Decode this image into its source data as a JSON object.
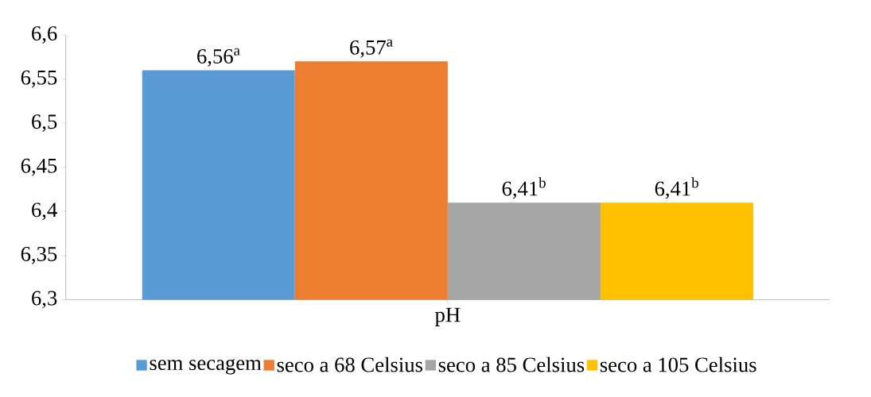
{
  "chart_data": {
    "type": "bar",
    "categories": [
      "pH"
    ],
    "series": [
      {
        "name": "sem secagem",
        "color": "#5b9bd5",
        "values": [
          6.56
        ],
        "value_labels": [
          "6,56$^{a}$"
        ]
      },
      {
        "name": "seco a 68 Celsius",
        "color": "#ed7d31",
        "values": [
          6.57
        ],
        "value_labels": [
          "6,57$^{a}$"
        ]
      },
      {
        "name": "seco a 85 Celsius",
        "color": "#a5a5a5",
        "values": [
          6.41
        ],
        "value_labels": [
          "6,41$^{b}$"
        ]
      },
      {
        "name": "seco a 105 Celsius",
        "color": "#ffc000",
        "values": [
          6.41
        ],
        "value_labels": [
          "6,41$^{b}$"
        ]
      }
    ],
    "ylim": [
      6.3,
      6.6
    ],
    "yticks": [
      {
        "value": 6.3,
        "label": "6,3"
      },
      {
        "value": 6.35,
        "label": "6,35"
      },
      {
        "value": 6.4,
        "label": "6,4"
      },
      {
        "value": 6.45,
        "label": "6,45"
      },
      {
        "value": 6.5,
        "label": "6,5"
      },
      {
        "value": 6.55,
        "label": "6,55"
      },
      {
        "value": 6.6,
        "label": "6,6"
      }
    ],
    "grid": false,
    "legend": "bottom"
  }
}
